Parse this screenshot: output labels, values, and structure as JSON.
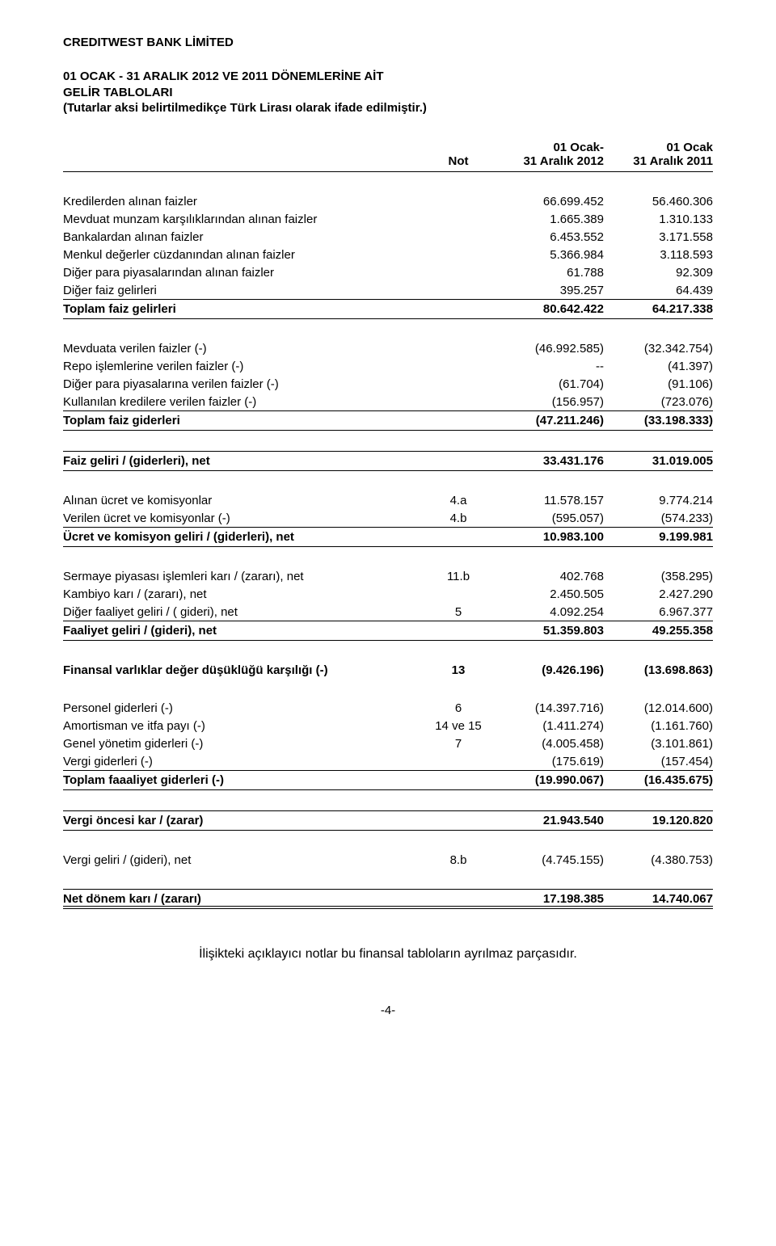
{
  "company": "CREDITWEST BANK LİMİTED",
  "heading": {
    "line1": "01 OCAK - 31 ARALIK 2012 VE 2011 DÖNEMLERİNE AİT",
    "line2": "GELİR TABLOLARI",
    "line3": "(Tutarlar aksi belirtilmedikçe Türk Lirası olarak ifade edilmiştir.)"
  },
  "header": {
    "note": "Not",
    "col1_l1": "01 Ocak-",
    "col1_l2": "31 Aralık 2012",
    "col2_l1": "01 Ocak",
    "col2_l2": "31 Aralık 2011"
  },
  "rows": {
    "r1": {
      "label": "Kredilerden alınan faizler",
      "note": "",
      "c1": "66.699.452",
      "c2": "56.460.306"
    },
    "r2": {
      "label": "Mevduat munzam karşılıklarından alınan faizler",
      "note": "",
      "c1": "1.665.389",
      "c2": "1.310.133"
    },
    "r3": {
      "label": "Bankalardan alınan faizler",
      "note": "",
      "c1": "6.453.552",
      "c2": "3.171.558"
    },
    "r4": {
      "label": "Menkul değerler cüzdanından alınan faizler",
      "note": "",
      "c1": "5.366.984",
      "c2": "3.118.593"
    },
    "r5": {
      "label": "Diğer para piyasalarından alınan faizler",
      "note": "",
      "c1": "61.788",
      "c2": "92.309"
    },
    "r6": {
      "label": "Diğer faiz gelirleri",
      "note": "",
      "c1": "395.257",
      "c2": "64.439"
    },
    "s1": {
      "label": "Toplam faiz gelirleri",
      "note": "",
      "c1": "80.642.422",
      "c2": "64.217.338"
    },
    "r7": {
      "label": "Mevduata verilen faizler (-)",
      "note": "",
      "c1": "(46.992.585)",
      "c2": "(32.342.754)"
    },
    "r8": {
      "label": "Repo işlemlerine verilen faizler (-)",
      "note": "",
      "c1": "--",
      "c2": "(41.397)"
    },
    "r9": {
      "label": "Diğer para piyasalarına verilen faizler (-)",
      "note": "",
      "c1": "(61.704)",
      "c2": "(91.106)"
    },
    "r10": {
      "label": "Kullanılan kredilere verilen faizler (-)",
      "note": "",
      "c1": "(156.957)",
      "c2": "(723.076)"
    },
    "s2": {
      "label": "Toplam faiz giderleri",
      "note": "",
      "c1": "(47.211.246)",
      "c2": "(33.198.333)"
    },
    "s3": {
      "label": "Faiz geliri / (giderleri), net",
      "note": "",
      "c1": "33.431.176",
      "c2": "31.019.005"
    },
    "r11": {
      "label": "Alınan ücret ve komisyonlar",
      "note": "4.a",
      "c1": "11.578.157",
      "c2": "9.774.214"
    },
    "r12": {
      "label": "Verilen ücret ve komisyonlar (-)",
      "note": "4.b",
      "c1": "(595.057)",
      "c2": "(574.233)"
    },
    "s4": {
      "label": "Ücret ve komisyon geliri / (giderleri), net",
      "note": "",
      "c1": "10.983.100",
      "c2": "9.199.981"
    },
    "r13": {
      "label": "Sermaye piyasası işlemleri karı  / (zararı), net",
      "note": "11.b",
      "c1": "402.768",
      "c2": "(358.295)"
    },
    "r14": {
      "label": "Kambiyo karı / (zararı), net",
      "note": "",
      "c1": "2.450.505",
      "c2": "2.427.290"
    },
    "r15": {
      "label": "Diğer faaliyet geliri / ( gideri), net",
      "note": "5",
      "c1": "4.092.254",
      "c2": "6.967.377"
    },
    "s5": {
      "label": "Faaliyet geliri / (gideri), net",
      "note": "",
      "c1": "51.359.803",
      "c2": "49.255.358"
    },
    "b1": {
      "label": "Finansal varlıklar değer düşüklüğü karşılığı (-)",
      "note": "13",
      "c1": "(9.426.196)",
      "c2": "(13.698.863)"
    },
    "r16": {
      "label": "Personel giderleri (-)",
      "note": "6",
      "c1": "(14.397.716)",
      "c2": "(12.014.600)"
    },
    "r17": {
      "label": "Amortisman ve itfa payı (-)",
      "note": "14 ve 15",
      "c1": "(1.411.274)",
      "c2": "(1.161.760)"
    },
    "r18": {
      "label": "Genel yönetim giderleri (-)",
      "note": "7",
      "c1": "(4.005.458)",
      "c2": "(3.101.861)"
    },
    "r19": {
      "label": "Vergi giderleri (-)",
      "note": "",
      "c1": "(175.619)",
      "c2": "(157.454)"
    },
    "s6": {
      "label": "Toplam faaaliyet giderleri (-)",
      "note": "",
      "c1": "(19.990.067)",
      "c2": "(16.435.675)"
    },
    "s7": {
      "label": "Vergi öncesi kar / (zarar)",
      "note": "",
      "c1": "21.943.540",
      "c2": "19.120.820"
    },
    "r20": {
      "label": "Vergi geliri / (gideri), net",
      "note": "8.b",
      "c1": "(4.745.155)",
      "c2": "(4.380.753)"
    },
    "s8": {
      "label": "Net dönem karı / (zararı)",
      "note": "",
      "c1": "17.198.385",
      "c2": "14.740.067"
    }
  },
  "footnote": "İlişikteki açıklayıcı notlar bu finansal tabloların ayrılmaz parçasıdır.",
  "pagenum": "-4-"
}
